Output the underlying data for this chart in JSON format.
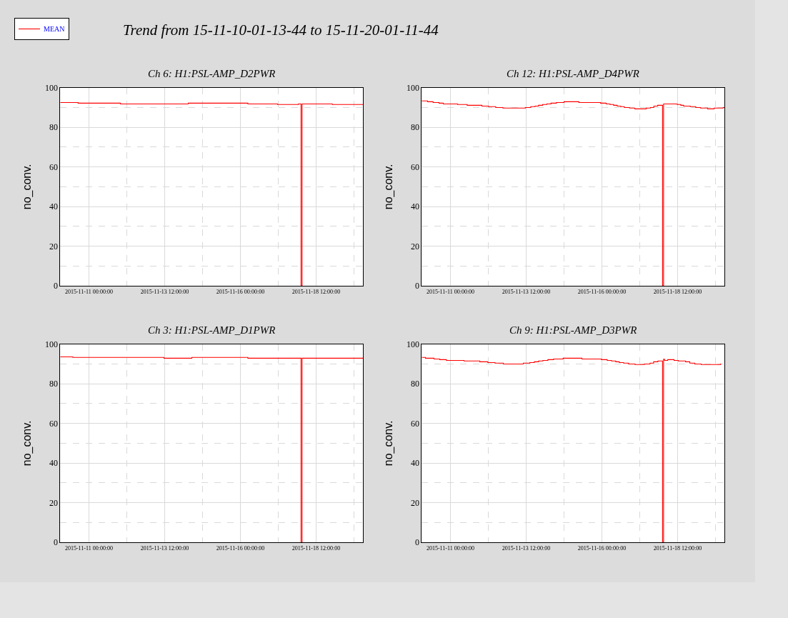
{
  "chart_data": [
    {
      "type": "other",
      "title": "Trend from 15-11-10-01-13-44 to 15-11-20-01-11-44"
    },
    {
      "type": "step",
      "title": "Ch 6: H1:PSL-AMP_D2PWR",
      "ylabel": "no_conv.",
      "grid": true,
      "legend": "top left",
      "xlim": [
        "2015-11-10T01:13:44",
        "2015-11-20T01:11:44"
      ],
      "xticks": [
        {
          "value": "2015-11-11T00:00",
          "label": "2015-11-11 00:00:00"
        },
        {
          "value": "2015-11-12T06:00",
          "label": null
        },
        {
          "value": "2015-11-13T12:00",
          "label": "2015-11-13 12:00:00"
        },
        {
          "value": "2015-11-14T18:00",
          "label": null
        },
        {
          "value": "2015-11-16T00:00",
          "label": "2015-11-16 00:00:00"
        },
        {
          "value": "2015-11-17T06:00",
          "label": null
        },
        {
          "value": "2015-11-18T12:00",
          "label": "2015-11-18 12:00:00"
        },
        {
          "value": "2015-11-19T18:00",
          "label": null
        }
      ],
      "ylim": [
        0,
        100
      ],
      "yticks": [
        0,
        {
          "value": 10,
          "label": null
        },
        20,
        {
          "value": 30,
          "label": null
        },
        40,
        {
          "value": 50,
          "label": null
        },
        60,
        {
          "value": 70,
          "label": null
        },
        80,
        {
          "value": 90,
          "label": null
        },
        100
      ],
      "series": [
        {
          "name": "MEAN",
          "color": "#ff0000",
          "x": [
            "2015-11-10T01:14",
            "2015-11-10T15:20",
            "2015-11-12T00:55",
            "2015-11-14T06:40",
            "2015-11-16T05:53",
            "2015-11-17T05:26",
            "2015-11-17T21:50",
            "2015-11-18T00:00",
            "2015-11-18T00:50",
            "2015-11-19T00:50",
            "2015-11-20T01:11"
          ],
          "values": [
            92.5,
            92.2,
            91.8,
            92.2,
            91.8,
            91.5,
            91.8,
            0,
            91.8,
            91.5,
            91.5
          ]
        }
      ]
    },
    {
      "type": "step",
      "title": "Ch 12: H1:PSL-AMP_D4PWR",
      "ylabel": "no_conv.",
      "grid": true,
      "xlim": [
        "2015-11-10T01:13:44",
        "2015-11-20T01:11:44"
      ],
      "xticks": [
        {
          "value": "2015-11-11T00:00",
          "label": "2015-11-11 00:00:00"
        },
        {
          "value": "2015-11-12T06:00",
          "label": null
        },
        {
          "value": "2015-11-13T12:00",
          "label": "2015-11-13 12:00:00"
        },
        {
          "value": "2015-11-14T18:00",
          "label": null
        },
        {
          "value": "2015-11-16T00:00",
          "label": "2015-11-16 00:00:00"
        },
        {
          "value": "2015-11-17T06:00",
          "label": null
        },
        {
          "value": "2015-11-18T12:00",
          "label": "2015-11-18 12:00:00"
        },
        {
          "value": "2015-11-19T18:00",
          "label": null
        }
      ],
      "ylim": [
        0,
        100
      ],
      "yticks": [
        0,
        {
          "value": 10,
          "label": null
        },
        20,
        {
          "value": 30,
          "label": null
        },
        40,
        {
          "value": 50,
          "label": null
        },
        60,
        {
          "value": 70,
          "label": null
        },
        80,
        {
          "value": 90,
          "label": null
        },
        100
      ],
      "series": [
        {
          "color": "#ff0000",
          "x": [
            "2015-11-10T01:14",
            "2015-11-10T05:53",
            "2015-11-10T10:14",
            "2015-11-10T14:56",
            "2015-11-10T18:20",
            "2015-11-11T05:40",
            "2015-11-11T13:13",
            "2015-11-12T00:55",
            "2015-11-12T06:11",
            "2015-11-12T11:51",
            "2015-11-12T17:31",
            "2015-11-13T11:26",
            "2015-11-13T15:35",
            "2015-11-13T18:59",
            "2015-11-13T21:49",
            "2015-11-14T01:01",
            "2015-11-14T04:14",
            "2015-11-14T07:37",
            "2015-11-14T11:58",
            "2015-11-14T18:00",
            "2015-11-15T05:42",
            "2015-11-15T22:52",
            "2015-11-16T03:24",
            "2015-11-16T06:25",
            "2015-11-16T09:15",
            "2015-11-16T12:05",
            "2015-11-16T14:55",
            "2015-11-16T17:44",
            "2015-11-16T21:53",
            "2015-11-17T02:02",
            "2015-11-17T11:06",
            "2015-11-17T14:29",
            "2015-11-17T17:08",
            "2015-11-17T20:09",
            "2015-11-18T00:00",
            "2015-11-18T00:50",
            "2015-11-18T11:37",
            "2015-11-18T14:27",
            "2015-11-18T16:43",
            "2015-11-18T22:00",
            "2015-11-19T02:20",
            "2015-11-19T06:07",
            "2015-11-19T11:46",
            "2015-11-19T16:52",
            "2015-11-20T00:02",
            "2015-11-20T01:11"
          ],
          "values": [
            93.3,
            92.9,
            92.5,
            92.2,
            91.8,
            91.5,
            91.1,
            90.7,
            90.4,
            90.0,
            89.7,
            90.0,
            90.4,
            90.7,
            91.1,
            91.5,
            91.8,
            92.2,
            92.5,
            92.9,
            92.5,
            92.2,
            91.8,
            91.5,
            91.1,
            90.7,
            90.4,
            90.0,
            89.7,
            89.3,
            89.7,
            90.0,
            90.7,
            91.1,
            0,
            91.8,
            91.5,
            91.1,
            90.7,
            90.4,
            90.0,
            89.7,
            89.3,
            89.7,
            90.0,
            90.0
          ]
        }
      ]
    },
    {
      "type": "step",
      "title": "Ch 3: H1:PSL-AMP_D1PWR",
      "ylabel": "no_conv.",
      "grid": true,
      "xlim": [
        "2015-11-10T01:13:44",
        "2015-11-20T01:11:44"
      ],
      "xticks": [
        {
          "value": "2015-11-11T00:00",
          "label": "2015-11-11 00:00:00"
        },
        {
          "value": "2015-11-12T06:00",
          "label": null
        },
        {
          "value": "2015-11-13T12:00",
          "label": "2015-11-13 12:00:00"
        },
        {
          "value": "2015-11-14T18:00",
          "label": null
        },
        {
          "value": "2015-11-16T00:00",
          "label": "2015-11-16 00:00:00"
        },
        {
          "value": "2015-11-17T06:00",
          "label": null
        },
        {
          "value": "2015-11-18T12:00",
          "label": "2015-11-18 12:00:00"
        },
        {
          "value": "2015-11-19T18:00",
          "label": null
        }
      ],
      "ylim": [
        0,
        100
      ],
      "yticks": [
        0,
        {
          "value": 10,
          "label": null
        },
        20,
        {
          "value": 30,
          "label": null
        },
        40,
        {
          "value": 50,
          "label": null
        },
        60,
        {
          "value": 70,
          "label": null
        },
        80,
        {
          "value": 90,
          "label": null
        },
        100
      ],
      "series": [
        {
          "color": "#ff0000",
          "x": [
            "2015-11-10T01:14",
            "2015-11-10T11:12",
            "2015-11-13T11:26",
            "2015-11-14T09:30",
            "2015-11-16T05:53",
            "2015-11-18T00:00",
            "2015-11-18T00:50",
            "2015-11-20T01:11"
          ],
          "values": [
            93.6,
            93.3,
            92.9,
            93.3,
            92.9,
            0,
            92.9,
            92.9
          ]
        }
      ]
    },
    {
      "type": "step",
      "title": "Ch 9: H1:PSL-AMP_D3PWR",
      "ylabel": "no_conv.",
      "grid": true,
      "xlim": [
        "2015-11-10T01:13:44",
        "2015-11-20T01:11:44"
      ],
      "xticks": [
        {
          "value": "2015-11-11T00:00",
          "label": "2015-11-11 00:00:00"
        },
        {
          "value": "2015-11-12T06:00",
          "label": null
        },
        {
          "value": "2015-11-13T12:00",
          "label": "2015-11-13 12:00:00"
        },
        {
          "value": "2015-11-14T18:00",
          "label": null
        },
        {
          "value": "2015-11-16T00:00",
          "label": "2015-11-16 00:00:00"
        },
        {
          "value": "2015-11-17T06:00",
          "label": null
        },
        {
          "value": "2015-11-18T12:00",
          "label": "2015-11-18 12:00:00"
        },
        {
          "value": "2015-11-19T18:00",
          "label": null
        }
      ],
      "ylim": [
        0,
        100
      ],
      "yticks": [
        0,
        {
          "value": 10,
          "label": null
        },
        20,
        {
          "value": 30,
          "label": null
        },
        40,
        {
          "value": 50,
          "label": null
        },
        60,
        {
          "value": 70,
          "label": null
        },
        80,
        {
          "value": 90,
          "label": null
        },
        100
      ],
      "series": [
        {
          "color": "#ff0000",
          "x": [
            "2015-11-10T01:14",
            "2015-11-10T04:11",
            "2015-11-10T10:59",
            "2015-11-10T15:31",
            "2015-11-10T20:47",
            "2015-11-11T10:45",
            "2015-11-11T23:13",
            "2015-11-12T05:37",
            "2015-11-12T11:17",
            "2015-11-12T17:53",
            "2015-11-13T09:44",
            "2015-11-13T14:50",
            "2015-11-13T18:25",
            "2015-11-13T21:49",
            "2015-11-14T01:13",
            "2015-11-14T05:10",
            "2015-11-14T09:42",
            "2015-11-14T17:15",
            "2015-11-15T08:09",
            "2015-11-15T23:37",
            "2015-11-16T04:09",
            "2015-11-16T07:33",
            "2015-11-16T10:56",
            "2015-11-16T13:46",
            "2015-11-16T17:10",
            "2015-11-16T21:08",
            "2015-11-17T02:14",
            "2015-11-17T09:35",
            "2015-11-17T14:07",
            "2015-11-17T16:56",
            "2015-11-17T20:20",
            "2015-11-18T00:00",
            "2015-11-18T00:50",
            "2015-11-18T01:37",
            "2015-11-18T04:05",
            "2015-11-18T09:10",
            "2015-11-18T12:34",
            "2015-11-18T18:14",
            "2015-11-18T21:37",
            "2015-11-19T01:35",
            "2015-11-19T06:41",
            "2015-11-19T21:58",
            "2015-11-19T22:30"
          ],
          "values": [
            93.3,
            92.9,
            92.5,
            92.2,
            91.8,
            91.5,
            91.1,
            90.7,
            90.4,
            90.0,
            90.4,
            90.7,
            91.1,
            91.5,
            91.8,
            92.2,
            92.5,
            92.9,
            92.5,
            92.2,
            91.8,
            91.5,
            91.1,
            90.7,
            90.4,
            90.0,
            89.7,
            90.0,
            90.4,
            91.1,
            91.5,
            0,
            92.4,
            91.8,
            92.2,
            91.8,
            91.5,
            91.1,
            90.4,
            90.0,
            89.7,
            90.0,
            90.0
          ]
        }
      ]
    }
  ]
}
